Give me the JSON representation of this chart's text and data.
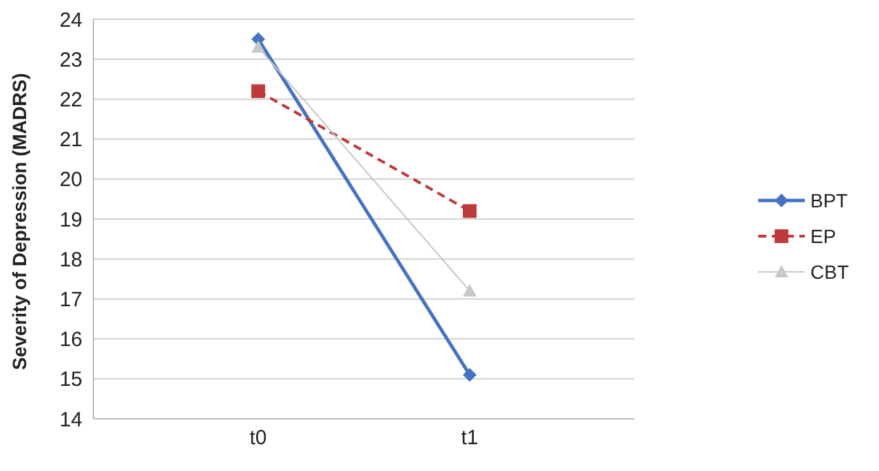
{
  "chart_data": {
    "type": "line",
    "ylabel": "Severity of Depression (MADRS)",
    "categories": [
      "t0",
      "t1"
    ],
    "series": [
      {
        "name": "BPT",
        "color": "#4472c4",
        "values": [
          23.5,
          15.1
        ],
        "marker": "diamond",
        "line_style": "solid"
      },
      {
        "name": "EP",
        "color": "#c0393b",
        "values": [
          22.2,
          19.2
        ],
        "marker": "square",
        "line_style": "dashed"
      },
      {
        "name": "CBT",
        "color": "#c8c8c8",
        "values": [
          23.3,
          17.2
        ],
        "marker": "triangle",
        "line_style": "solid"
      }
    ],
    "ylim": [
      14,
      24
    ],
    "yticks": [
      14,
      15,
      16,
      17,
      18,
      19,
      20,
      21,
      22,
      23,
      24
    ],
    "grid": "y",
    "legend": "right"
  }
}
